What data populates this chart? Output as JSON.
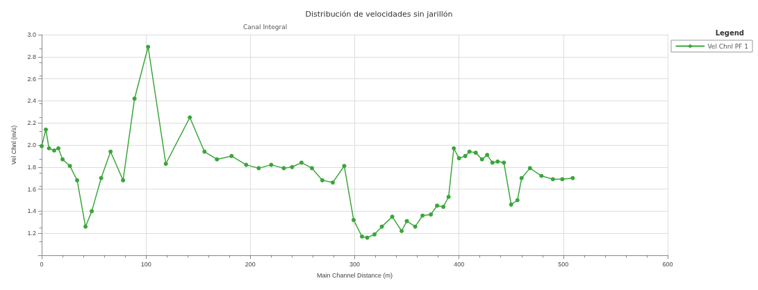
{
  "chart_data": {
    "type": "line",
    "title": "Distribución de velocidades sin jarillón",
    "xlabel": "Main Channel Distance (m)",
    "ylabel": "Vel Chnl (m/s)",
    "legend_title": "Legend",
    "annotations": [
      "Canal Integral"
    ],
    "x": [
      0,
      4,
      7,
      12,
      16,
      20,
      27,
      34,
      42,
      48,
      57,
      66,
      78,
      89,
      102,
      119,
      142,
      156,
      168,
      182,
      196,
      208,
      220,
      232,
      240,
      249,
      259,
      269,
      279,
      290,
      299,
      307,
      312,
      319,
      326,
      336,
      345,
      350,
      358,
      365,
      373,
      379,
      385,
      390,
      395,
      400,
      406,
      410,
      416,
      422,
      427,
      432,
      437,
      443,
      450,
      456,
      460,
      468,
      479,
      490,
      499,
      509
    ],
    "series": [
      {
        "name": "Vel Chnl PF 1",
        "color": "#3aa63a",
        "values": [
          1.99,
          2.14,
          1.97,
          1.95,
          1.97,
          1.87,
          1.81,
          1.68,
          1.26,
          1.4,
          1.7,
          1.94,
          1.68,
          2.42,
          2.89,
          1.83,
          2.25,
          1.94,
          1.87,
          1.9,
          1.82,
          1.79,
          1.82,
          1.79,
          1.8,
          1.84,
          1.79,
          1.68,
          1.66,
          1.81,
          1.32,
          1.17,
          1.16,
          1.19,
          1.26,
          1.35,
          1.22,
          1.31,
          1.26,
          1.36,
          1.37,
          1.45,
          1.44,
          1.53,
          1.97,
          1.88,
          1.9,
          1.94,
          1.93,
          1.87,
          1.91,
          1.84,
          1.85,
          1.84,
          1.46,
          1.5,
          1.7,
          1.79,
          1.72,
          1.69,
          1.69,
          1.7
        ]
      }
    ],
    "xlim": [
      0,
      600
    ],
    "xticks": [
      0,
      100,
      200,
      300,
      400,
      500,
      600
    ],
    "ylim": [
      1.0,
      3.0
    ],
    "yticks": [
      {
        "value": 1.0,
        "label": null
      },
      1.2,
      1.4,
      1.6,
      1.8,
      {
        "value": 2.0,
        "label": "2.0"
      },
      2.2,
      2.4,
      2.6,
      2.8,
      {
        "value": 3.0,
        "label": "3.0"
      }
    ],
    "grid": true,
    "legend": "top right",
    "marker": "circle",
    "line_style": "solid"
  }
}
